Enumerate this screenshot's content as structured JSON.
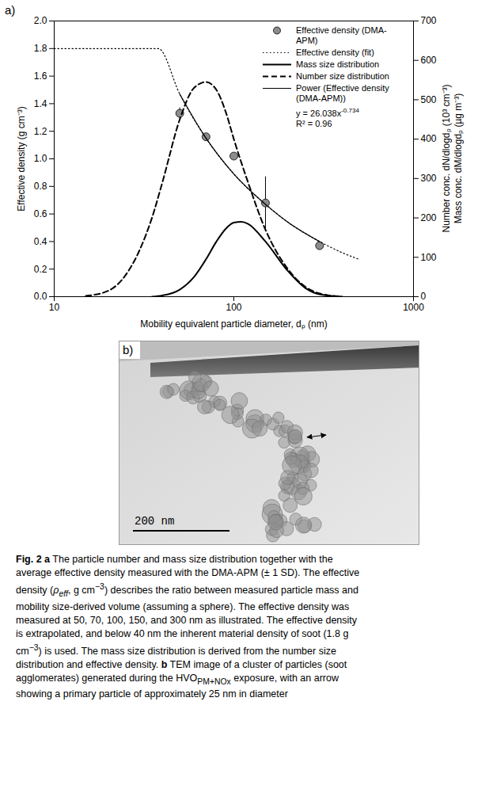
{
  "chart_data": {
    "type": "line",
    "panel_label": "a)",
    "x_label": "Mobility equivalent particle diameter, dₚ (nm)",
    "y_label": "Effective density (g cm⁻³)",
    "y2_label": [
      "Number conc. dN/dlogdₚ (10³ cm⁻³)",
      "Mass conc. dM/dlogdₚ (µg m⁻³)"
    ],
    "log": "x",
    "xlim": [
      10,
      1000
    ],
    "xticks": [
      10,
      100,
      1000
    ],
    "ylim": [
      0,
      2
    ],
    "yticks": [
      {
        "value": 0,
        "label": "0.0"
      },
      0.2,
      0.4,
      0.6,
      0.8,
      {
        "value": 1,
        "label": "1.0"
      },
      1.2,
      1.4,
      1.6,
      1.8,
      {
        "value": 2,
        "label": "2.0"
      }
    ],
    "y2lim": [
      0,
      700
    ],
    "y2ticks": [
      0,
      100,
      200,
      300,
      400,
      500,
      600,
      700
    ],
    "legend": "upper right",
    "series": [
      {
        "name": "Effective density (DMA-APM)",
        "type": "scatter",
        "marker": "circle",
        "color": "#8c8c8c",
        "x": [
          50,
          70,
          100,
          150,
          300
        ],
        "values": [
          1.33,
          1.16,
          1.02,
          0.68,
          0.37
        ],
        "error": [
          0.04,
          0.01,
          0.01,
          0.19,
          0.01
        ]
      },
      {
        "name": "Effective density (fit)",
        "type": "line",
        "line_style": "dotted",
        "color": "#000000",
        "x": [
          10,
          20,
          38,
          50,
          70,
          100,
          150,
          200,
          300,
          400,
          500
        ],
        "values": [
          1.8,
          1.8,
          1.8,
          1.47,
          1.15,
          0.89,
          0.67,
          0.54,
          0.4,
          0.32,
          0.27
        ]
      },
      {
        "name": "Mass size distribution",
        "type": "line",
        "line_style": "solid",
        "color": "#000000",
        "axis": "y2",
        "x": [
          35,
          40,
          50,
          60,
          70,
          80,
          90,
          100,
          110,
          120,
          150,
          200,
          250,
          300,
          400
        ],
        "values": [
          0,
          3,
          18,
          50,
          95,
          140,
          172,
          188,
          190,
          185,
          140,
          65,
          22,
          6,
          0
        ]
      },
      {
        "name": "Number size distribution",
        "type": "line",
        "line_style": "dashed",
        "color": "#000000",
        "axis": "y2",
        "x": [
          15,
          20,
          25,
          30,
          35,
          40,
          50,
          60,
          70,
          80,
          90,
          100,
          120,
          150,
          200,
          250,
          300,
          400
        ],
        "values": [
          2,
          15,
          55,
          120,
          200,
          290,
          450,
          530,
          545,
          525,
          470,
          400,
          290,
          170,
          70,
          25,
          8,
          0
        ]
      },
      {
        "name": "Power (Effective density (DMA-APM))",
        "type": "line",
        "line_style": "solid",
        "color": "#000000",
        "x": [
          50,
          70,
          100,
          150,
          200,
          300
        ],
        "values": [
          1.47,
          1.15,
          0.89,
          0.67,
          0.54,
          0.4
        ]
      }
    ],
    "annotations": [
      {
        "text": "y = 26.038x",
        "superscript": "-0.734"
      },
      {
        "text": "R² = 0.96"
      }
    ]
  },
  "panel_b": {
    "label": "b)",
    "scale_bar": "200 nm"
  },
  "caption": [
    {
      "text": "Fig. 2 a",
      "style": "bold"
    },
    {
      "text": " The particle number and mass size distribution together with the average effective density measured with the DMA-APM (± 1 SD). The effective density ("
    },
    {
      "text": "ρ",
      "style": "italic"
    },
    {
      "text": "eff",
      "style": "italic sub"
    },
    {
      "text": ", g cm"
    },
    {
      "text": "−3",
      "style": "sup"
    },
    {
      "text": ") describes the ratio between measured particle mass and mobility size-derived volume (assuming a sphere). The effective density was measured at 50, 70, 100, 150, and 300 nm as illustrated. The effective density is extrapolated, and below 40 nm the inherent material density of soot (1.8 g cm"
    },
    {
      "text": "−3",
      "style": "sup"
    },
    {
      "text": ") is used. The mass size distribution is derived from the number size distribution and effective density. "
    },
    {
      "text": "b",
      "style": "bold"
    },
    {
      "text": " TEM image of a cluster of particles (soot agglomerates) generated during the HVO"
    },
    {
      "text": "PM+NOx",
      "style": "sub"
    },
    {
      "text": " exposure, with an arrow showing a primary particle of approximately 25 nm in diameter"
    }
  ]
}
